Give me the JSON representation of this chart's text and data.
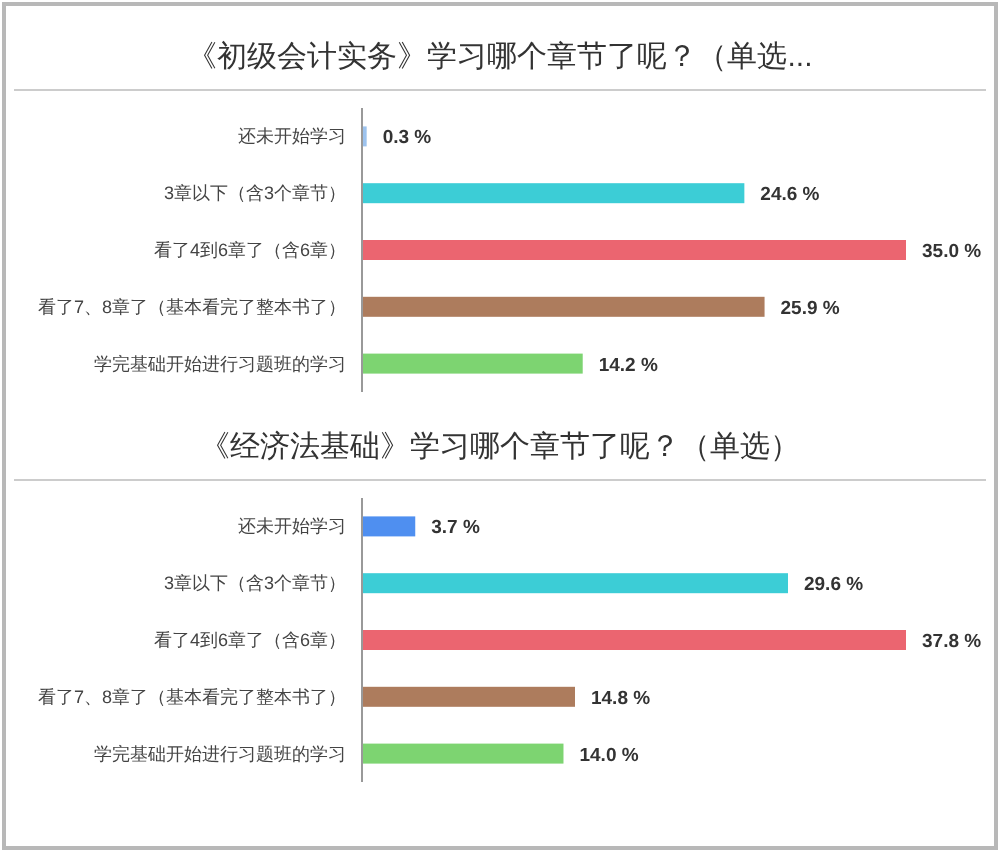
{
  "chart_data": [
    {
      "type": "bar",
      "orientation": "horizontal",
      "title": "《初级会计实务》学习哪个章节了呢？（单选...",
      "categories": [
        "还未开始学习",
        "3章以下（含3个章节）",
        "看了4到6章了（含6章）",
        "看了7、8章了（基本看完了整本书了）",
        "学完基础开始进行习题班的学习"
      ],
      "values": [
        0.3,
        24.6,
        35.0,
        25.9,
        14.2
      ],
      "colors": [
        "#9dc3ee",
        "#3ccdd6",
        "#eb6570",
        "#ad7c5d",
        "#7dd471"
      ],
      "value_labels": [
        "0.3 %",
        "24.6 %",
        "35.0 %",
        "25.9 %",
        "14.2 %"
      ]
    },
    {
      "type": "bar",
      "orientation": "horizontal",
      "title": "《经济法基础》学习哪个章节了呢？（单选）",
      "categories": [
        "还未开始学习",
        "3章以下（含3个章节）",
        "看了4到6章了（含6章）",
        "看了7、8章了（基本看完了整本书了）",
        "学完基础开始进行习题班的学习"
      ],
      "values": [
        3.7,
        29.6,
        37.8,
        14.8,
        14.0
      ],
      "colors": [
        "#4f8ff0",
        "#3ccdd6",
        "#eb6570",
        "#ad7c5d",
        "#7dd471"
      ],
      "value_labels": [
        "3.7 %",
        "29.6 %",
        "37.8 %",
        "14.8 %",
        "14.0 %"
      ]
    }
  ]
}
